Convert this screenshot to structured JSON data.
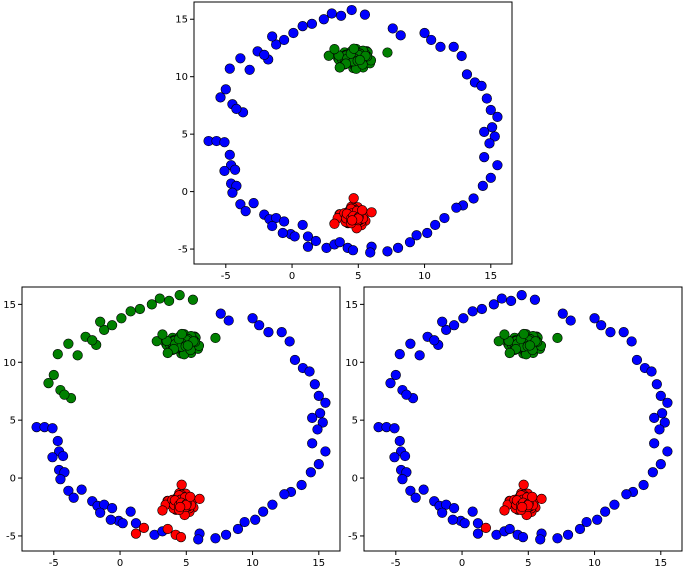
{
  "colors": {
    "blue": "#0000ff",
    "green": "#008000",
    "red": "#ff0000"
  },
  "chart_data": [
    {
      "type": "scatter",
      "grid": false,
      "xlim": [
        -7.4,
        16.6
      ],
      "ylim": [
        -6.3,
        16.5
      ],
      "xticks": [
        "-5",
        "0",
        "5",
        "10",
        "15"
      ],
      "yticks": [
        "-5",
        "0",
        "5",
        "10",
        "15"
      ],
      "ring_colors": [
        "blue"
      ],
      "bottom_red_indices": []
    },
    {
      "type": "scatter",
      "grid": false,
      "xlim": [
        -7.4,
        16.6
      ],
      "ylim": [
        -6.3,
        16.5
      ],
      "xticks": [
        "-5",
        "0",
        "5",
        "10",
        "15"
      ],
      "yticks": [
        "-5",
        "0",
        "5",
        "10",
        "15"
      ],
      "ring_green_range": [
        -7,
        6
      ],
      "bottom_red_indices": [
        2,
        3,
        4,
        5,
        6
      ]
    },
    {
      "type": "scatter",
      "grid": false,
      "xlim": [
        -7.4,
        16.6
      ],
      "ylim": [
        -6.3,
        16.5
      ],
      "xticks": [
        "-5",
        "0",
        "5",
        "10",
        "15"
      ],
      "yticks": [
        "-5",
        "0",
        "5",
        "10",
        "15"
      ],
      "ring_colors": [
        "blue"
      ],
      "bottom_red_indices": [
        3
      ]
    }
  ],
  "ring_points": [
    [
      -5.4,
      8.2
    ],
    [
      -4.7,
      10.7
    ],
    [
      -3.9,
      11.6
    ],
    [
      -3.2,
      10.6
    ],
    [
      -2.6,
      12.2
    ],
    [
      -1.8,
      11.5
    ],
    [
      -1.2,
      12.8
    ],
    [
      -0.6,
      13.2
    ],
    [
      0.1,
      13.8
    ],
    [
      0.8,
      14.4
    ],
    [
      1.5,
      14.6
    ],
    [
      2.4,
      15.0
    ],
    [
      3.0,
      15.5
    ],
    [
      3.7,
      15.3
    ],
    [
      4.5,
      15.8
    ],
    [
      5.5,
      15.4
    ],
    [
      -5.0,
      8.9
    ],
    [
      -4.5,
      7.6
    ],
    [
      -3.7,
      6.9
    ],
    [
      -4.2,
      7.2
    ],
    [
      -2.1,
      11.9
    ],
    [
      -1.5,
      13.5
    ],
    [
      7.6,
      14.2
    ],
    [
      8.2,
      13.6
    ],
    [
      10.0,
      13.8
    ],
    [
      10.5,
      13.2
    ],
    [
      11.2,
      12.6
    ],
    [
      12.2,
      12.6
    ],
    [
      12.8,
      11.8
    ],
    [
      13.2,
      10.2
    ],
    [
      13.8,
      9.5
    ],
    [
      14.3,
      9.2
    ],
    [
      14.7,
      8.1
    ],
    [
      15.0,
      7.1
    ],
    [
      15.5,
      6.5
    ],
    [
      15.1,
      5.6
    ],
    [
      14.5,
      5.2
    ],
    [
      15.3,
      4.8
    ],
    [
      14.9,
      4.2
    ],
    [
      14.5,
      3.0
    ],
    [
      15.5,
      2.3
    ],
    [
      15.0,
      1.2
    ],
    [
      14.4,
      0.5
    ],
    [
      13.7,
      -0.6
    ],
    [
      12.9,
      -1.2
    ],
    [
      12.4,
      -1.4
    ],
    [
      11.5,
      -2.3
    ],
    [
      10.8,
      -2.9
    ],
    [
      10.2,
      -3.6
    ],
    [
      9.4,
      -3.8
    ],
    [
      8.9,
      -4.4
    ],
    [
      8.0,
      -4.9
    ],
    [
      7.2,
      -5.2
    ],
    [
      6.0,
      -4.8
    ],
    [
      5.9,
      -5.3
    ],
    [
      -6.3,
      4.4
    ],
    [
      -5.7,
      4.4
    ],
    [
      -5.1,
      4.3
    ],
    [
      -4.7,
      3.2
    ],
    [
      -4.6,
      2.3
    ],
    [
      -4.3,
      1.9
    ],
    [
      -5.1,
      1.8
    ],
    [
      -4.6,
      0.7
    ],
    [
      -4.2,
      0.5
    ],
    [
      -4.5,
      -0.1
    ],
    [
      -3.9,
      -1.1
    ],
    [
      -3.5,
      -1.7
    ],
    [
      -2.9,
      -1.0
    ],
    [
      -2.1,
      -2.0
    ],
    [
      -1.7,
      -2.4
    ],
    [
      -1.2,
      -2.3
    ],
    [
      -0.6,
      -2.6
    ],
    [
      -0.1,
      -3.7
    ],
    [
      0.2,
      -3.9
    ],
    [
      1.2,
      -3.9
    ],
    [
      -0.7,
      -3.6
    ],
    [
      -1.5,
      -3.0
    ],
    [
      0.8,
      -2.9
    ]
  ],
  "bottom_points": [
    [
      2.6,
      -4.9
    ],
    [
      3.2,
      -4.6
    ],
    [
      1.2,
      -4.8
    ],
    [
      1.8,
      -4.3
    ],
    [
      3.6,
      -4.4
    ],
    [
      4.2,
      -4.9
    ],
    [
      4.6,
      -5.1
    ]
  ],
  "green_cluster": {
    "center": [
      4.6,
      11.7
    ],
    "spread": [
      0.95,
      0.6
    ],
    "count": 150,
    "extra_points": [
      [
        7.2,
        12.1
      ],
      [
        3.2,
        12.4
      ],
      [
        3.6,
        10.8
      ]
    ]
  },
  "red_cluster": {
    "center": [
      4.6,
      -2.1
    ],
    "spread": [
      0.75,
      0.7
    ],
    "count": 90,
    "extra_points": [
      [
        3.2,
        -2.8
      ],
      [
        6.0,
        -1.8
      ]
    ]
  }
}
